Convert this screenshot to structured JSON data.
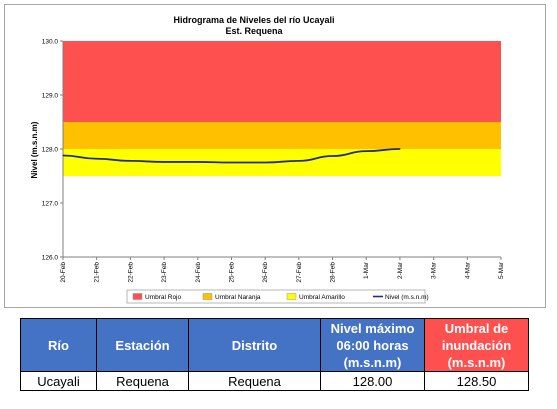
{
  "chart_data": {
    "type": "line",
    "title": "Hidrograma de Niveles del río Ucayali",
    "subtitle": "Est. Requena",
    "ylabel": "Nivel (m.s.n.m)",
    "xlabel": "",
    "ylim": [
      126.0,
      130.0
    ],
    "yticks": [
      "126.0",
      "127.0",
      "128.0",
      "129.0",
      "130.0"
    ],
    "x_categories": [
      "20-Feb",
      "21-Feb",
      "22-Feb",
      "23-Feb",
      "24-Feb",
      "25-Feb",
      "26-Feb",
      "27-Feb",
      "28-Feb",
      "1-Mar",
      "2-Mar",
      "3-Mar",
      "4-Mar",
      "5-Mar"
    ],
    "bands": [
      {
        "name": "Umbral Rojo",
        "from": 128.5,
        "to": 130.0,
        "color": "#ff5050"
      },
      {
        "name": "Umbral Naranja",
        "from": 128.0,
        "to": 128.5,
        "color": "#ffc000"
      },
      {
        "name": "Umbral Amarillo",
        "from": 127.5,
        "to": 128.0,
        "color": "#ffff00"
      }
    ],
    "series": [
      {
        "name": "Nivel (m.s.n.m)",
        "color": "#1f2d8a",
        "x": [
          "20-Feb",
          "21-Feb",
          "22-Feb",
          "23-Feb",
          "24-Feb",
          "25-Feb",
          "26-Feb",
          "27-Feb",
          "28-Feb",
          "1-Mar",
          "2-Mar"
        ],
        "values": [
          127.88,
          127.82,
          127.78,
          127.76,
          127.76,
          127.75,
          127.75,
          127.78,
          127.87,
          127.96,
          128.0
        ]
      }
    ],
    "legend_position": "bottom",
    "grid": false
  },
  "table": {
    "headers": {
      "rio": "Río",
      "estacion": "Estación",
      "distrito": "Distrito",
      "nivel_line1": "Nivel máximo",
      "nivel_line2": "06:00 horas",
      "nivel_line3": "(m.s.n.m)",
      "umbral_line1": "Umbral de",
      "umbral_line2": "inundación",
      "umbral_line3": "(m.s.n.m)"
    },
    "row": {
      "rio": "Ucayali",
      "estacion": "Requena",
      "distrito": "Requena",
      "nivel": "128.00",
      "umbral": "128.50"
    }
  },
  "colors": {
    "header_blue": "#4472c4",
    "header_red": "#ff5050",
    "line": "#1f2d8a"
  }
}
